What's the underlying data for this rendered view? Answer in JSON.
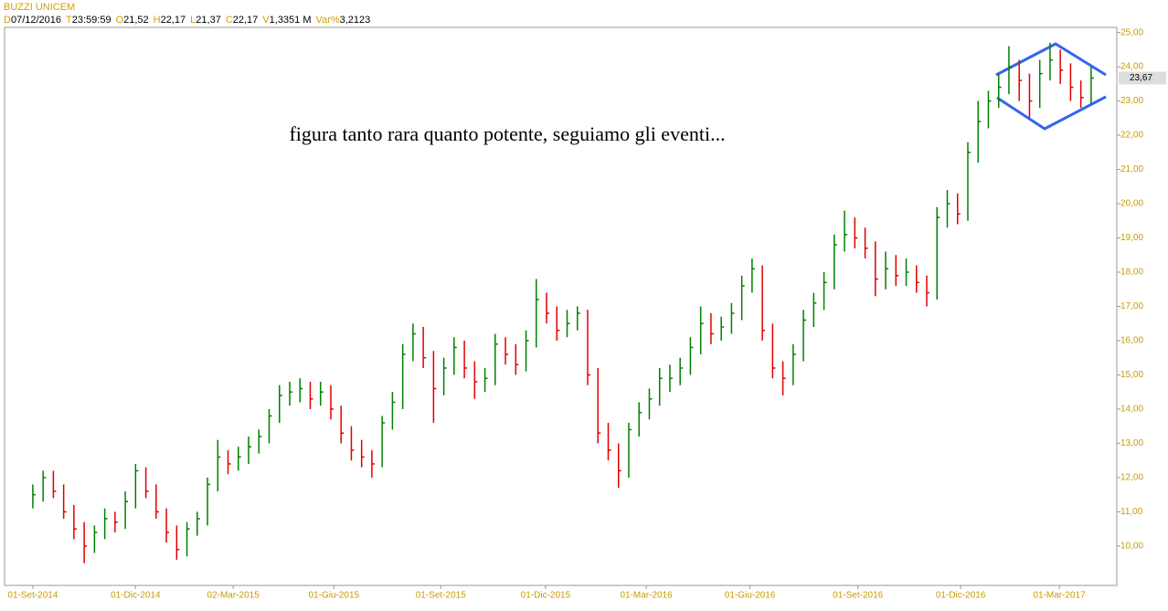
{
  "header": {
    "title": "BUZZI UNICEM",
    "fields": [
      {
        "key": "D",
        "value": "07/12/2016"
      },
      {
        "key": "T",
        "value": "23:59:59"
      },
      {
        "key": "O",
        "value": "21,52"
      },
      {
        "key": "H",
        "value": "22,17"
      },
      {
        "key": "L",
        "value": "21,37"
      },
      {
        "key": "C",
        "value": "22,17"
      },
      {
        "key": "V",
        "value": "1,3351 M"
      },
      {
        "key": "Var%",
        "value": "3,2123"
      }
    ]
  },
  "chart_data": {
    "type": "ohlc",
    "annotation": "figura tanto rara quanto potente, seguiamo gli eventi...",
    "colors": {
      "up": "#008000",
      "down": "#e00000"
    },
    "high": [
      11.8,
      12.2,
      12.2,
      11.8,
      11.2,
      10.7,
      10.6,
      11.1,
      11.0,
      11.6,
      12.4,
      12.3,
      11.8,
      11.1,
      10.6,
      10.7,
      11.0,
      12.0,
      13.1,
      12.8,
      12.9,
      13.2,
      13.4,
      14.0,
      14.7,
      14.8,
      14.9,
      14.8,
      14.8,
      14.7,
      14.1,
      13.5,
      13.1,
      12.8,
      13.8,
      14.5,
      15.9,
      16.5,
      16.4,
      15.7,
      15.5,
      16.1,
      16.0,
      15.4,
      15.2,
      16.2,
      16.1,
      15.9,
      16.3,
      17.8,
      17.4,
      17.0,
      16.9,
      17.0,
      16.9,
      15.2,
      13.6,
      13.0,
      13.6,
      14.2,
      14.6,
      15.2,
      15.3,
      15.5,
      16.1,
      17.0,
      16.8,
      16.7,
      17.1,
      17.9,
      18.4,
      18.2,
      16.5,
      15.4,
      15.9,
      16.9,
      17.4,
      18.0,
      19.1,
      19.8,
      19.6,
      19.3,
      18.9,
      18.6,
      18.5,
      18.4,
      18.2,
      17.9,
      19.9,
      20.4,
      20.3,
      21.8,
      23.0,
      23.3,
      23.8,
      24.6,
      24.2,
      23.8,
      24.2,
      24.7,
      24.5,
      24.1,
      23.6,
      24.0
    ],
    "low": [
      11.1,
      11.3,
      11.4,
      10.8,
      10.2,
      9.5,
      9.8,
      10.2,
      10.4,
      10.5,
      11.1,
      11.4,
      10.8,
      10.1,
      9.6,
      9.7,
      10.3,
      10.6,
      11.6,
      12.1,
      12.2,
      12.4,
      12.7,
      13.0,
      13.6,
      14.1,
      14.2,
      14.0,
      14.1,
      13.7,
      13.0,
      12.5,
      12.3,
      12.0,
      12.3,
      13.4,
      14.0,
      15.4,
      15.2,
      13.6,
      14.4,
      15.0,
      14.9,
      14.3,
      14.5,
      14.7,
      15.3,
      15.0,
      15.1,
      15.8,
      16.5,
      16.0,
      16.1,
      16.3,
      14.7,
      13.0,
      12.5,
      11.7,
      12.0,
      13.2,
      13.7,
      14.1,
      14.5,
      14.7,
      15.0,
      15.6,
      15.9,
      16.0,
      16.2,
      16.6,
      17.4,
      16.0,
      14.9,
      14.4,
      14.7,
      15.4,
      16.4,
      16.9,
      17.5,
      18.6,
      18.7,
      18.4,
      17.3,
      17.5,
      17.6,
      17.6,
      17.4,
      17.0,
      17.2,
      19.3,
      19.4,
      19.5,
      21.2,
      22.2,
      22.8,
      23.2,
      23.0,
      22.5,
      22.8,
      23.6,
      23.5,
      23.0,
      22.8,
      22.9
    ],
    "close": [
      11.5,
      12.0,
      11.6,
      11.0,
      10.5,
      10.0,
      10.4,
      10.8,
      10.7,
      11.3,
      12.2,
      11.6,
      11.0,
      10.4,
      9.9,
      10.5,
      10.8,
      11.8,
      12.6,
      12.4,
      12.6,
      12.9,
      13.2,
      13.8,
      14.4,
      14.5,
      14.6,
      14.3,
      14.5,
      14.0,
      13.3,
      12.8,
      12.6,
      12.4,
      13.6,
      14.2,
      15.6,
      16.2,
      15.5,
      14.6,
      15.2,
      15.8,
      15.2,
      14.8,
      14.9,
      15.9,
      15.6,
      15.3,
      16.0,
      17.2,
      16.8,
      16.3,
      16.5,
      16.8,
      15.0,
      13.3,
      12.8,
      12.2,
      13.4,
      13.9,
      14.3,
      14.9,
      14.9,
      15.2,
      15.8,
      16.5,
      16.2,
      16.4,
      16.8,
      17.6,
      18.1,
      16.3,
      15.2,
      14.9,
      15.6,
      16.6,
      17.1,
      17.7,
      18.8,
      19.1,
      19.0,
      18.7,
      17.8,
      18.1,
      17.9,
      18.0,
      17.7,
      17.4,
      19.6,
      20.0,
      19.7,
      21.5,
      22.4,
      23.0,
      23.4,
      24.0,
      23.6,
      23.0,
      23.8,
      24.2,
      23.9,
      23.4,
      23.1,
      23.67
    ],
    "last_price": {
      "value": 23.67,
      "label": "23,67"
    },
    "xlim": [
      -2.75,
      105.5
    ],
    "xticks": [
      {
        "value": 0,
        "label": "01-Set-2014"
      },
      {
        "value": 10,
        "label": "01-Dic-2014"
      },
      {
        "value": 19.5,
        "label": "02-Mar-2015"
      },
      {
        "value": 29.3,
        "label": "01-Giu-2015"
      },
      {
        "value": 39.7,
        "label": "01-Set-2015"
      },
      {
        "value": 49.9,
        "label": "01-Dic-2015"
      },
      {
        "value": 59.7,
        "label": "01-Mar-2016"
      },
      {
        "value": 69.8,
        "label": "01-Giu-2016"
      },
      {
        "value": 80.3,
        "label": "01-Set-2016"
      },
      {
        "value": 90.3,
        "label": "01-Dic-2016"
      },
      {
        "value": 99.9,
        "label": "01-Mar-2017"
      }
    ],
    "ylim": [
      8.85,
      25.15
    ],
    "yticks": [
      {
        "value": 10,
        "label": "10,00"
      },
      {
        "value": 11,
        "label": "11,00"
      },
      {
        "value": 12,
        "label": "12,00"
      },
      {
        "value": 13,
        "label": "13,00"
      },
      {
        "value": 14,
        "label": "14,00"
      },
      {
        "value": 15,
        "label": "15,00"
      },
      {
        "value": 16,
        "label": "16,00"
      },
      {
        "value": 17,
        "label": "17,00"
      },
      {
        "value": 18,
        "label": "18,00"
      },
      {
        "value": 19,
        "label": "19,00"
      },
      {
        "value": 20,
        "label": "20,00"
      },
      {
        "value": 21,
        "label": "21,00"
      },
      {
        "value": 22,
        "label": "22,00"
      },
      {
        "value": 23,
        "label": "23,00"
      },
      {
        "value": 24,
        "label": "24,00"
      },
      {
        "value": 25,
        "label": "25,00"
      }
    ]
  }
}
